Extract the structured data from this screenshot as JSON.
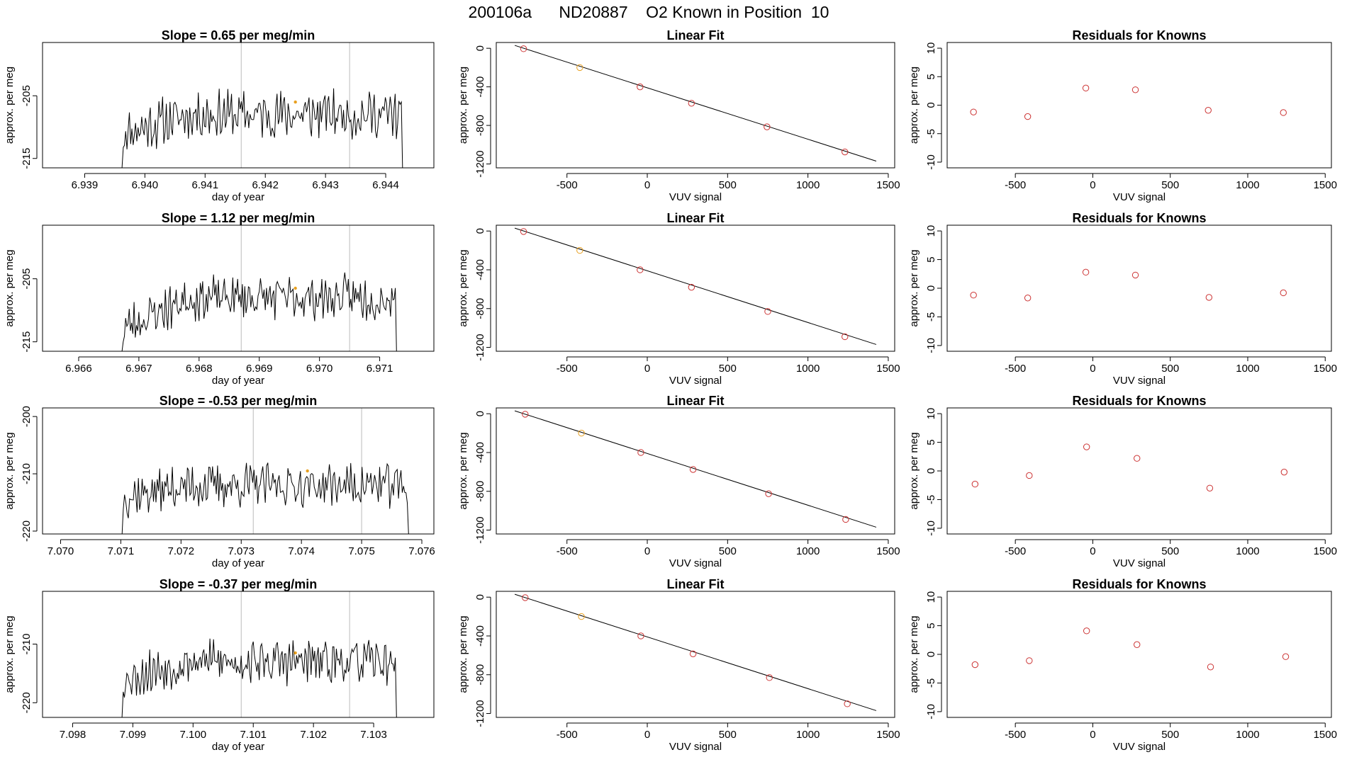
{
  "title": "200106a      ND20887    O2 Known in Position  10",
  "colors": {
    "line": "#000000",
    "known": "#cc3333",
    "highlight": "#e8a020",
    "vline": "#bbbbbb",
    "frame": "#000000"
  },
  "chart_data": [
    {
      "type": "line",
      "title": "Slope =  0.65  per meg/min",
      "xlabel": "day of year",
      "ylabel": "approx. per meg",
      "xlim": [
        6.9383,
        6.9448
      ],
      "ylim": [
        -216.5,
        -196.5
      ],
      "xticks": [
        {
          "v": 6.939,
          "label": "6.939"
        },
        {
          "v": 6.94,
          "label": "6.940"
        },
        {
          "v": 6.941,
          "label": "6.941"
        },
        {
          "v": 6.942,
          "label": "6.942"
        },
        {
          "v": 6.943,
          "label": "6.943"
        },
        {
          "v": 6.944,
          "label": "6.944"
        }
      ],
      "yticks": [
        {
          "v": -215,
          "label": "-215"
        },
        {
          "v": -205,
          "label": "-205"
        }
      ],
      "x_start": 6.9396,
      "x_end": 6.9443,
      "base": -208,
      "rise": 3,
      "amp": 3.2,
      "floor": -216.5,
      "seed": 11,
      "vlines": [
        6.9416,
        6.9434
      ],
      "highlight": {
        "x": 6.9425,
        "y": -206
      }
    },
    {
      "type": "line",
      "title": "Slope =  1.12  per meg/min",
      "xlabel": "day of year",
      "ylabel": "approx. per meg",
      "xlim": [
        6.9654,
        6.9719
      ],
      "ylim": [
        -216.5,
        -196.5
      ],
      "xticks": [
        {
          "v": 6.966,
          "label": "6.966"
        },
        {
          "v": 6.967,
          "label": "6.967"
        },
        {
          "v": 6.968,
          "label": "6.968"
        },
        {
          "v": 6.969,
          "label": "6.969"
        },
        {
          "v": 6.97,
          "label": "6.970"
        },
        {
          "v": 6.971,
          "label": "6.971"
        }
      ],
      "yticks": [
        {
          "v": -215,
          "label": "-215"
        },
        {
          "v": -205,
          "label": "-205"
        }
      ],
      "x_start": 6.9667,
      "x_end": 6.9713,
      "base": -210,
      "rise": 5,
      "amp": 3.0,
      "floor": -216.5,
      "seed": 23,
      "vlines": [
        6.9687,
        6.9705
      ],
      "highlight": {
        "x": 6.9696,
        "y": -206.5
      }
    },
    {
      "type": "line",
      "title": "Slope =  -0.53  per meg/min",
      "xlabel": "day of year",
      "ylabel": "approx. per meg",
      "xlim": [
        7.0697,
        7.0762
      ],
      "ylim": [
        -220.5,
        -198.5
      ],
      "xticks": [
        {
          "v": 7.07,
          "label": "7.070"
        },
        {
          "v": 7.071,
          "label": "7.071"
        },
        {
          "v": 7.072,
          "label": "7.072"
        },
        {
          "v": 7.073,
          "label": "7.073"
        },
        {
          "v": 7.074,
          "label": "7.074"
        },
        {
          "v": 7.075,
          "label": "7.075"
        },
        {
          "v": 7.076,
          "label": "7.076"
        }
      ],
      "yticks": [
        {
          "v": -220,
          "label": "-220"
        },
        {
          "v": -210,
          "label": "-210"
        },
        {
          "v": -200,
          "label": "-200"
        }
      ],
      "x_start": 7.071,
      "x_end": 7.0758,
      "base": -211,
      "rise": 2,
      "amp": 3.2,
      "floor": -220.5,
      "seed": 37,
      "vlines": [
        7.0732,
        7.075
      ],
      "highlight": {
        "x": 7.0741,
        "y": -209.5
      }
    },
    {
      "type": "line",
      "title": "Slope =  -0.37  per meg/min",
      "xlabel": "day of year",
      "ylabel": "approx. per meg",
      "xlim": [
        7.0975,
        7.104
      ],
      "ylim": [
        -222.5,
        -201
      ],
      "xticks": [
        {
          "v": 7.098,
          "label": "7.098"
        },
        {
          "v": 7.099,
          "label": "7.099"
        },
        {
          "v": 7.1,
          "label": "7.100"
        },
        {
          "v": 7.101,
          "label": "7.101"
        },
        {
          "v": 7.102,
          "label": "7.102"
        },
        {
          "v": 7.103,
          "label": "7.103"
        }
      ],
      "yticks": [
        {
          "v": -220,
          "label": "-220"
        },
        {
          "v": -210,
          "label": "-210"
        }
      ],
      "x_start": 7.0988,
      "x_end": 7.1034,
      "base": -213,
      "rise": 3,
      "amp": 3.2,
      "floor": -222.5,
      "seed": 53,
      "vlines": [
        7.1008,
        7.1026
      ],
      "highlight": {
        "x": 7.1017,
        "y": -211.5
      }
    },
    {
      "type": "scatter",
      "title": "Linear Fit",
      "xlabel": "VUV signal",
      "ylabel": "approx. per meg",
      "xlim": [
        -940,
        1540
      ],
      "ylim": [
        -1240,
        60
      ],
      "xticks": [
        {
          "v": -500,
          "label": "-500"
        },
        {
          "v": 0,
          "label": "0"
        },
        {
          "v": 500,
          "label": "500"
        },
        {
          "v": 1000,
          "label": "1000"
        },
        {
          "v": 1500,
          "label": "1500"
        }
      ],
      "yticks": [
        {
          "v": 0,
          "label": "0"
        },
        {
          "v": -400,
          "label": "-400"
        },
        {
          "v": -800,
          "label": "-800"
        },
        {
          "v": -1200,
          "label": "-1200"
        }
      ],
      "fit_line": {
        "x": [
          -825,
          1425
        ],
        "y": [
          30,
          -1170
        ]
      },
      "points": [
        {
          "x": -770,
          "y": -5
        },
        {
          "x": -420,
          "y": -200
        },
        {
          "x": -45,
          "y": -400
        },
        {
          "x": 275,
          "y": -570
        },
        {
          "x": 745,
          "y": -815
        },
        {
          "x": 1230,
          "y": -1075
        }
      ],
      "highlight_index": 1
    },
    {
      "type": "scatter",
      "title": "Linear Fit",
      "xlabel": "VUV signal",
      "ylabel": "approx. per meg",
      "xlim": [
        -940,
        1540
      ],
      "ylim": [
        -1240,
        60
      ],
      "xticks": [
        {
          "v": -500,
          "label": "-500"
        },
        {
          "v": 0,
          "label": "0"
        },
        {
          "v": 500,
          "label": "500"
        },
        {
          "v": 1000,
          "label": "1000"
        },
        {
          "v": 1500,
          "label": "1500"
        }
      ],
      "yticks": [
        {
          "v": 0,
          "label": "0"
        },
        {
          "v": -400,
          "label": "-400"
        },
        {
          "v": -800,
          "label": "-800"
        },
        {
          "v": -1200,
          "label": "-1200"
        }
      ],
      "fit_line": {
        "x": [
          -825,
          1425
        ],
        "y": [
          30,
          -1170
        ]
      },
      "points": [
        {
          "x": -770,
          "y": -5
        },
        {
          "x": -420,
          "y": -200
        },
        {
          "x": -45,
          "y": -400
        },
        {
          "x": 275,
          "y": -580
        },
        {
          "x": 750,
          "y": -830
        },
        {
          "x": 1230,
          "y": -1090
        }
      ],
      "highlight_index": 1
    },
    {
      "type": "scatter",
      "title": "Linear Fit",
      "xlabel": "VUV signal",
      "ylabel": "approx. per meg",
      "xlim": [
        -940,
        1540
      ],
      "ylim": [
        -1240,
        60
      ],
      "xticks": [
        {
          "v": -500,
          "label": "-500"
        },
        {
          "v": 0,
          "label": "0"
        },
        {
          "v": 500,
          "label": "500"
        },
        {
          "v": 1000,
          "label": "1000"
        },
        {
          "v": 1500,
          "label": "1500"
        }
      ],
      "yticks": [
        {
          "v": 0,
          "label": "0"
        },
        {
          "v": -400,
          "label": "-400"
        },
        {
          "v": -800,
          "label": "-800"
        },
        {
          "v": -1200,
          "label": "-1200"
        }
      ],
      "fit_line": {
        "x": [
          -825,
          1425
        ],
        "y": [
          30,
          -1170
        ]
      },
      "points": [
        {
          "x": -760,
          "y": -5
        },
        {
          "x": -410,
          "y": -200
        },
        {
          "x": -40,
          "y": -400
        },
        {
          "x": 285,
          "y": -575
        },
        {
          "x": 755,
          "y": -825
        },
        {
          "x": 1235,
          "y": -1090
        }
      ],
      "highlight_index": 1
    },
    {
      "type": "scatter",
      "title": "Linear Fit",
      "xlabel": "VUV signal",
      "ylabel": "approx. per meg",
      "xlim": [
        -940,
        1540
      ],
      "ylim": [
        -1240,
        60
      ],
      "xticks": [
        {
          "v": -500,
          "label": "-500"
        },
        {
          "v": 0,
          "label": "0"
        },
        {
          "v": 500,
          "label": "500"
        },
        {
          "v": 1000,
          "label": "1000"
        },
        {
          "v": 1500,
          "label": "1500"
        }
      ],
      "yticks": [
        {
          "v": 0,
          "label": "0"
        },
        {
          "v": -400,
          "label": "-400"
        },
        {
          "v": -800,
          "label": "-800"
        },
        {
          "v": -1200,
          "label": "-1200"
        }
      ],
      "fit_line": {
        "x": [
          -825,
          1425
        ],
        "y": [
          30,
          -1170
        ]
      },
      "points": [
        {
          "x": -760,
          "y": -5
        },
        {
          "x": -410,
          "y": -200
        },
        {
          "x": -40,
          "y": -400
        },
        {
          "x": 285,
          "y": -585
        },
        {
          "x": 760,
          "y": -830
        },
        {
          "x": 1245,
          "y": -1100
        }
      ],
      "highlight_index": 1
    },
    {
      "type": "scatter",
      "title": "Residuals for Knowns",
      "xlabel": "VUV signal",
      "ylabel": "approx. per meg",
      "xlim": [
        -940,
        1540
      ],
      "ylim": [
        -11,
        11
      ],
      "xticks": [
        {
          "v": -500,
          "label": "-500"
        },
        {
          "v": 0,
          "label": "0"
        },
        {
          "v": 500,
          "label": "500"
        },
        {
          "v": 1000,
          "label": "1000"
        },
        {
          "v": 1500,
          "label": "1500"
        }
      ],
      "yticks": [
        {
          "v": 10,
          "label": "10"
        },
        {
          "v": 5,
          "label": "5"
        },
        {
          "v": 0,
          "label": "0"
        },
        {
          "v": -5,
          "label": "-5"
        },
        {
          "v": -10,
          "label": "-10"
        }
      ],
      "points": [
        {
          "x": -770,
          "y": -1.2
        },
        {
          "x": -420,
          "y": -2.0
        },
        {
          "x": -45,
          "y": 3.0
        },
        {
          "x": 275,
          "y": 2.7
        },
        {
          "x": 745,
          "y": -0.9
        },
        {
          "x": 1230,
          "y": -1.3
        }
      ]
    },
    {
      "type": "scatter",
      "title": "Residuals for Knowns",
      "xlabel": "VUV signal",
      "ylabel": "approx. per meg",
      "xlim": [
        -940,
        1540
      ],
      "ylim": [
        -11,
        11
      ],
      "xticks": [
        {
          "v": -500,
          "label": "-500"
        },
        {
          "v": 0,
          "label": "0"
        },
        {
          "v": 500,
          "label": "500"
        },
        {
          "v": 1000,
          "label": "1000"
        },
        {
          "v": 1500,
          "label": "1500"
        }
      ],
      "yticks": [
        {
          "v": 10,
          "label": "10"
        },
        {
          "v": 5,
          "label": "5"
        },
        {
          "v": 0,
          "label": "0"
        },
        {
          "v": -5,
          "label": "-5"
        },
        {
          "v": -10,
          "label": "-10"
        }
      ],
      "points": [
        {
          "x": -770,
          "y": -1.2
        },
        {
          "x": -420,
          "y": -1.7
        },
        {
          "x": -45,
          "y": 2.8
        },
        {
          "x": 275,
          "y": 2.3
        },
        {
          "x": 750,
          "y": -1.6
        },
        {
          "x": 1230,
          "y": -0.8
        }
      ]
    },
    {
      "type": "scatter",
      "title": "Residuals for Knowns",
      "xlabel": "VUV signal",
      "ylabel": "approx. per meg",
      "xlim": [
        -940,
        1540
      ],
      "ylim": [
        -11,
        11
      ],
      "xticks": [
        {
          "v": -500,
          "label": "-500"
        },
        {
          "v": 0,
          "label": "0"
        },
        {
          "v": 500,
          "label": "500"
        },
        {
          "v": 1000,
          "label": "1000"
        },
        {
          "v": 1500,
          "label": "1500"
        }
      ],
      "yticks": [
        {
          "v": 10,
          "label": "10"
        },
        {
          "v": 5,
          "label": "5"
        },
        {
          "v": 0,
          "label": "0"
        },
        {
          "v": -5,
          "label": "-5"
        },
        {
          "v": -10,
          "label": "-10"
        }
      ],
      "points": [
        {
          "x": -760,
          "y": -2.3
        },
        {
          "x": -410,
          "y": -0.8
        },
        {
          "x": -40,
          "y": 4.2
        },
        {
          "x": 285,
          "y": 2.2
        },
        {
          "x": 755,
          "y": -3.0
        },
        {
          "x": 1235,
          "y": -0.2
        }
      ]
    },
    {
      "type": "scatter",
      "title": "Residuals for Knowns",
      "xlabel": "VUV signal",
      "ylabel": "approx. per meg",
      "xlim": [
        -940,
        1540
      ],
      "ylim": [
        -11,
        11
      ],
      "xticks": [
        {
          "v": -500,
          "label": "-500"
        },
        {
          "v": 0,
          "label": "0"
        },
        {
          "v": 500,
          "label": "500"
        },
        {
          "v": 1000,
          "label": "1000"
        },
        {
          "v": 1500,
          "label": "1500"
        }
      ],
      "yticks": [
        {
          "v": 10,
          "label": "10"
        },
        {
          "v": 5,
          "label": "5"
        },
        {
          "v": 0,
          "label": "0"
        },
        {
          "v": -5,
          "label": "-5"
        },
        {
          "v": -10,
          "label": "-10"
        }
      ],
      "points": [
        {
          "x": -760,
          "y": -1.8
        },
        {
          "x": -410,
          "y": -1.1
        },
        {
          "x": -40,
          "y": 4.1
        },
        {
          "x": 285,
          "y": 1.7
        },
        {
          "x": 760,
          "y": -2.2
        },
        {
          "x": 1245,
          "y": -0.4
        }
      ]
    }
  ]
}
